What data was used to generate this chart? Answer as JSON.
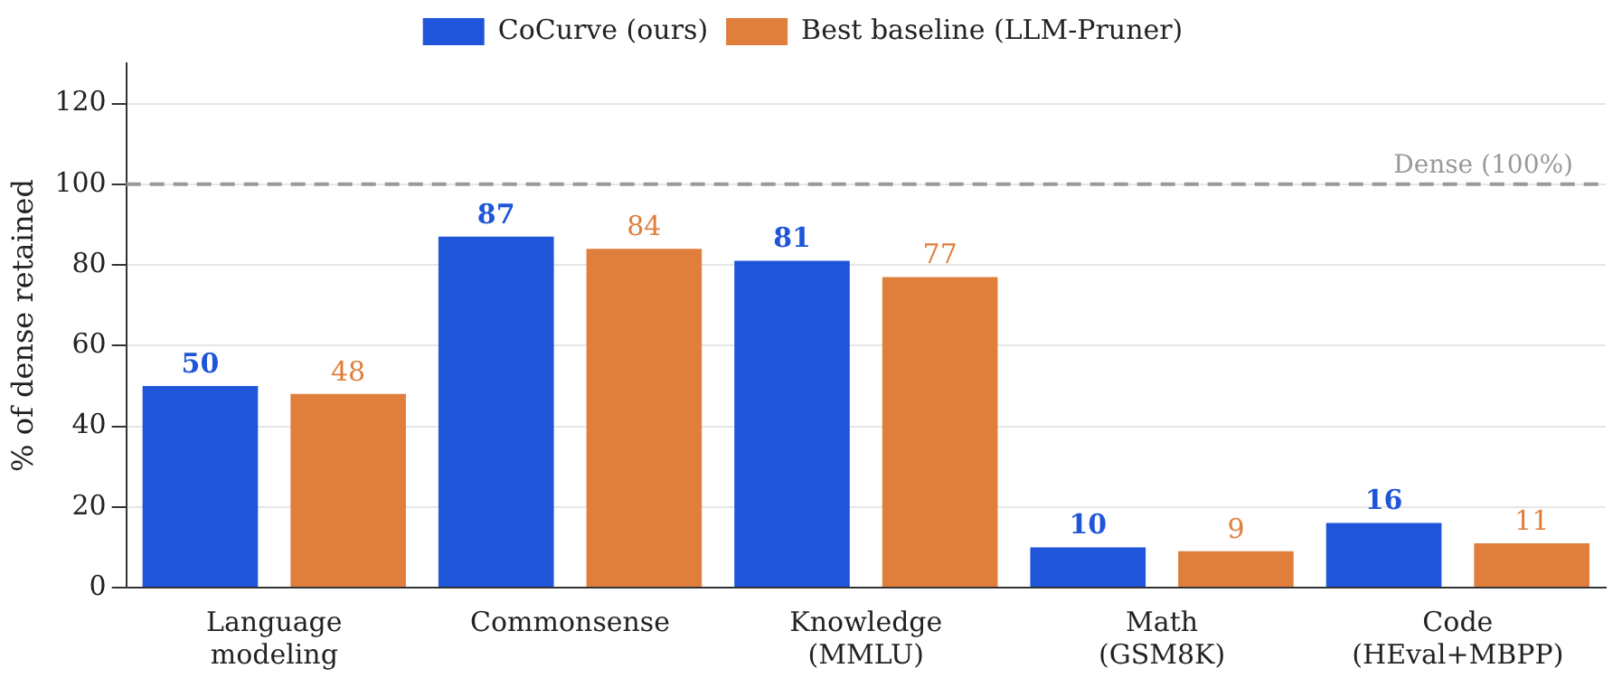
{
  "chart_data": {
    "type": "bar",
    "ylabel": "% of dense retained",
    "categories": [
      "Language\nmodeling",
      "Commonsense",
      "Knowledge\n(MMLU)",
      "Math\n(GSM8K)",
      "Code\n(HEval+MBPP)"
    ],
    "series": [
      {
        "name": "CoCurve (ours)",
        "color": "#1f56d9",
        "values": [
          50,
          87,
          81,
          10,
          16
        ]
      },
      {
        "name": "Best baseline (LLM-Pruner)",
        "color": "#e07e3c",
        "values": [
          48,
          84,
          77,
          9,
          11
        ]
      }
    ],
    "ylim": [
      0,
      130
    ],
    "yticks": [
      0,
      20,
      40,
      60,
      80,
      100,
      120
    ],
    "grid": "y",
    "legend": "top",
    "data_labels": true,
    "ref_lines": [
      {
        "axis": "y",
        "value": 100,
        "label": "Dense (100%)",
        "color": "#999999",
        "line_style": "dashed"
      }
    ]
  }
}
